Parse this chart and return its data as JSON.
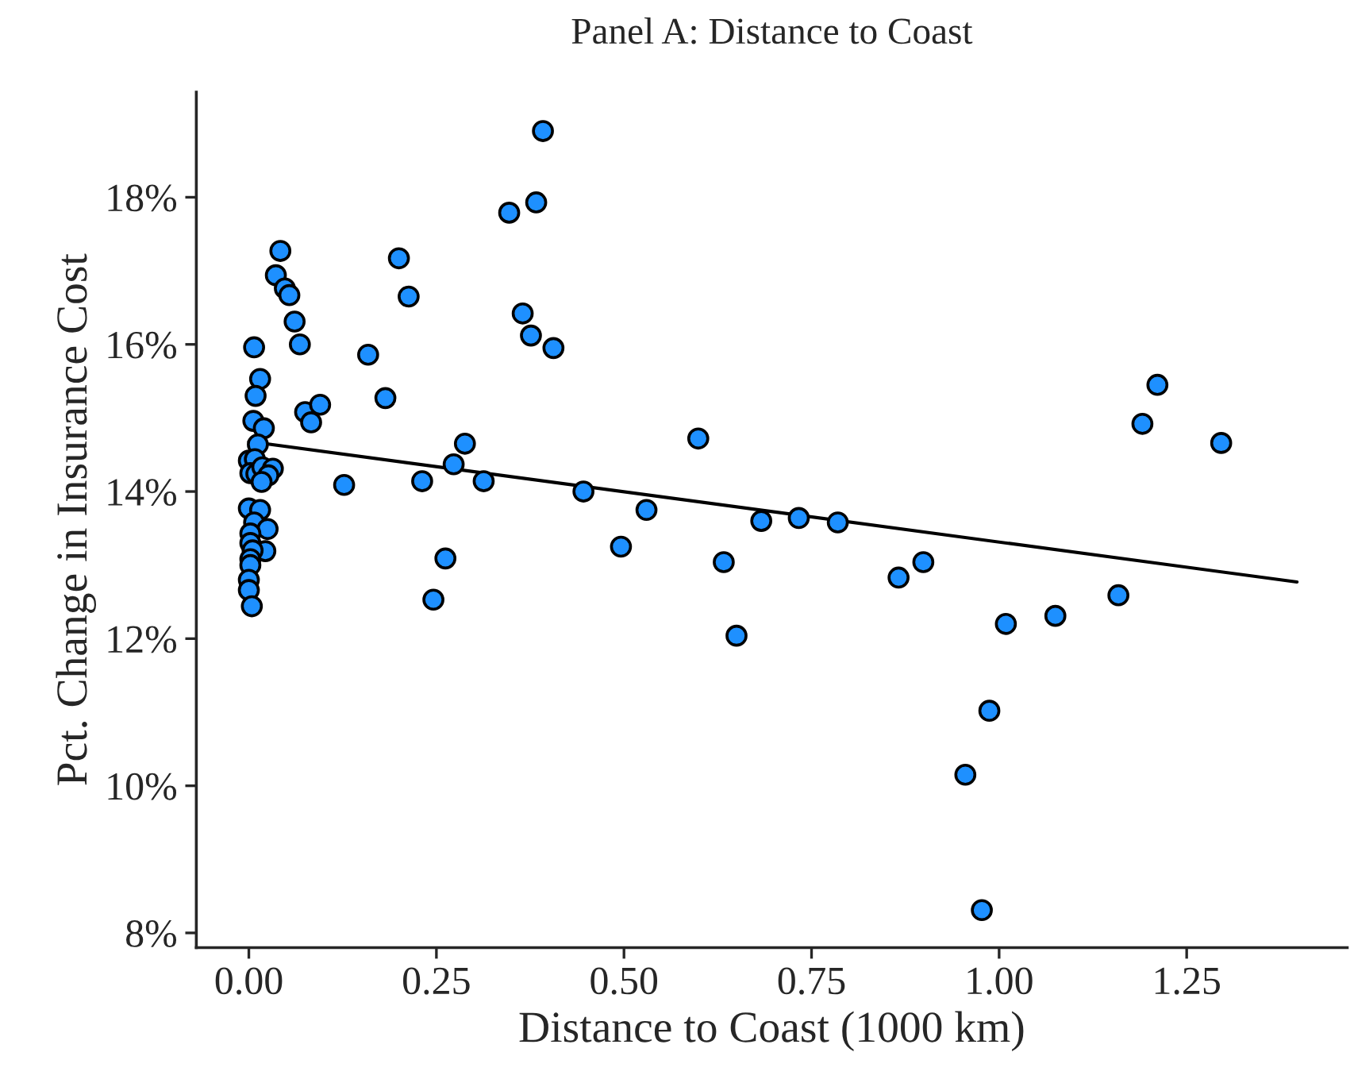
{
  "chart_data": {
    "type": "scatter",
    "title": "Panel A: Distance to Coast",
    "xlabel": "Distance to Coast (1000 km)",
    "ylabel": "Pct. Change in Insurance Cost",
    "xlim": [
      -0.07,
      1.464
    ],
    "ylim": [
      7.8,
      19.43
    ],
    "xticks": [
      {
        "value": 0,
        "label": "0.00"
      },
      {
        "value": 0.25,
        "label": "0.25"
      },
      {
        "value": 0.5,
        "label": "0.50"
      },
      {
        "value": 0.75,
        "label": "0.75"
      },
      {
        "value": 1,
        "label": "1.00"
      },
      {
        "value": 1.25,
        "label": "1.25"
      }
    ],
    "yticks": [
      {
        "value": 8,
        "label": "8%"
      },
      {
        "value": 10,
        "label": "10%"
      },
      {
        "value": 12,
        "label": "12%"
      },
      {
        "value": 14,
        "label": "14%"
      },
      {
        "value": 16,
        "label": "16%"
      },
      {
        "value": 18,
        "label": "18%"
      }
    ],
    "grid": false,
    "legend": false,
    "marker": "circle",
    "series": [
      {
        "color": "#1e90ff",
        "x": [
          0.042,
          0.036,
          0.048,
          0.054,
          0.061,
          0.068,
          0.007,
          0.015,
          0.009,
          0.006,
          0.02,
          0.012,
          0.0,
          0.008,
          0.002,
          0.01,
          0.018,
          0.032,
          0.026,
          0.017,
          0.0,
          0.015,
          0.007,
          0.025,
          0.002,
          0.002,
          0.022,
          0.005,
          0.002,
          0.002,
          0.0,
          0.0,
          0.004,
          0.075,
          0.083,
          0.095,
          0.127,
          0.159,
          0.182,
          0.2,
          0.213,
          0.231,
          0.262,
          0.246,
          0.273,
          0.288,
          0.313,
          0.347,
          0.365,
          0.376,
          0.383,
          0.392,
          0.406,
          0.446,
          0.53,
          0.496,
          0.599,
          0.633,
          0.65,
          0.683,
          0.733,
          0.785,
          0.866,
          0.899,
          1.009,
          1.075,
          1.159,
          1.191,
          1.211,
          1.296,
          0.987,
          0.955,
          0.977
        ],
        "values": [
          17.27,
          16.94,
          16.76,
          16.67,
          16.31,
          16.0,
          15.96,
          15.53,
          15.3,
          14.96,
          14.86,
          14.64,
          14.42,
          14.44,
          14.25,
          14.24,
          14.33,
          14.31,
          14.22,
          14.13,
          13.77,
          13.75,
          13.58,
          13.49,
          13.43,
          13.3,
          13.19,
          13.2,
          13.08,
          13.0,
          12.8,
          12.66,
          12.44,
          15.08,
          14.94,
          15.18,
          14.09,
          15.86,
          15.27,
          17.17,
          16.65,
          14.14,
          13.09,
          12.53,
          14.37,
          14.65,
          14.14,
          17.79,
          16.42,
          16.12,
          17.93,
          18.9,
          15.95,
          14.0,
          13.75,
          13.25,
          14.72,
          13.04,
          12.04,
          13.6,
          13.64,
          13.58,
          12.83,
          13.04,
          12.2,
          12.31,
          12.59,
          14.92,
          15.45,
          14.66,
          11.02,
          10.15,
          8.31
        ]
      },
      {
        "type": "line",
        "color": "#000000",
        "marker": "none",
        "x": [
          0.0,
          1.397
        ],
        "values": [
          14.68,
          12.77
        ]
      }
    ]
  }
}
